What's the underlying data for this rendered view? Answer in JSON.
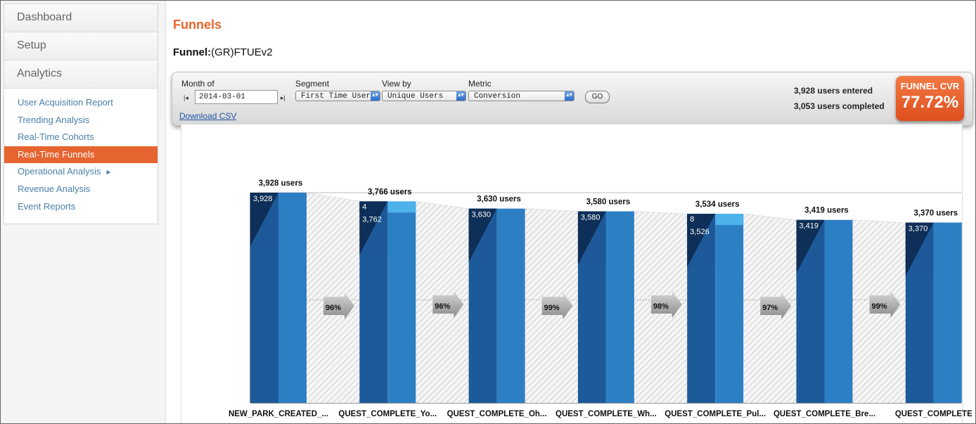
{
  "sidebar": {
    "top_items": [
      {
        "label": "Dashboard"
      },
      {
        "label": "Setup"
      },
      {
        "label": "Analytics"
      }
    ],
    "sub_items": [
      {
        "label": "User Acquisition Report"
      },
      {
        "label": "Trending Analysis"
      },
      {
        "label": "Real-Time Cohorts"
      },
      {
        "label": "Real-Time Funnels",
        "active": true
      },
      {
        "label": "Operational Analysis",
        "has_submenu": true
      },
      {
        "label": "Revenue Analysis"
      },
      {
        "label": "Event Reports"
      }
    ]
  },
  "page": {
    "title": "Funnels",
    "funnel_label": "Funnel:",
    "funnel_name": "(GR)FTUEv2"
  },
  "toolbar": {
    "month_label": "Month of",
    "month_value": "2014-03-01",
    "segment_label": "Segment",
    "segment_value": "First Time User",
    "viewby_label": "View by",
    "viewby_value": "Unique Users",
    "metric_label": "Metric",
    "metric_value": "Conversion",
    "go_label": "GO",
    "download_label": "Download CSV",
    "users_entered": "3,928 users entered",
    "users_completed": "3,053 users completed",
    "cvr_label": "FUNNEL CVR",
    "cvr_value": "77.72%"
  },
  "colors": {
    "accent": "#e8652c",
    "bar_dark": "#1d5a99",
    "bar_light": "#2d7fc4",
    "bar_cap": "#0e2f57",
    "bar_new": "#4db1ea"
  },
  "chart_data": {
    "type": "bar",
    "categories": [
      "NEW_PARK_CREATED_...",
      "QUEST_COMPLETE_Yo...",
      "QUEST_COMPLETE_Oh...",
      "QUEST_COMPLETE_Wh...",
      "QUEST_COMPLETE_Pul...",
      "QUEST_COMPLETE_Bre...",
      "QUEST_COMPLETE"
    ],
    "values": [
      3928,
      3766,
      3630,
      3580,
      3534,
      3419,
      3370
    ],
    "top_labels": [
      "3,928 users",
      "3,766 users",
      "3,630 users",
      "3,580 users",
      "3,534 users",
      "3,419 users",
      "3,370 users"
    ],
    "continuing": [
      3928,
      3762,
      3630,
      3580,
      3526,
      3419,
      3370
    ],
    "continuing_labels": [
      "3,928",
      "3,762",
      "3,630",
      "3,580",
      "3,526",
      "3,419",
      "3,370"
    ],
    "new_users": [
      0,
      4,
      0,
      0,
      8,
      0,
      0
    ],
    "new_labels": [
      "",
      "4",
      "",
      "",
      "8",
      "",
      ""
    ],
    "step_conversion": [
      "96%",
      "96%",
      "99%",
      "98%",
      "97%",
      "99%"
    ],
    "ylim": [
      0,
      3928
    ]
  }
}
